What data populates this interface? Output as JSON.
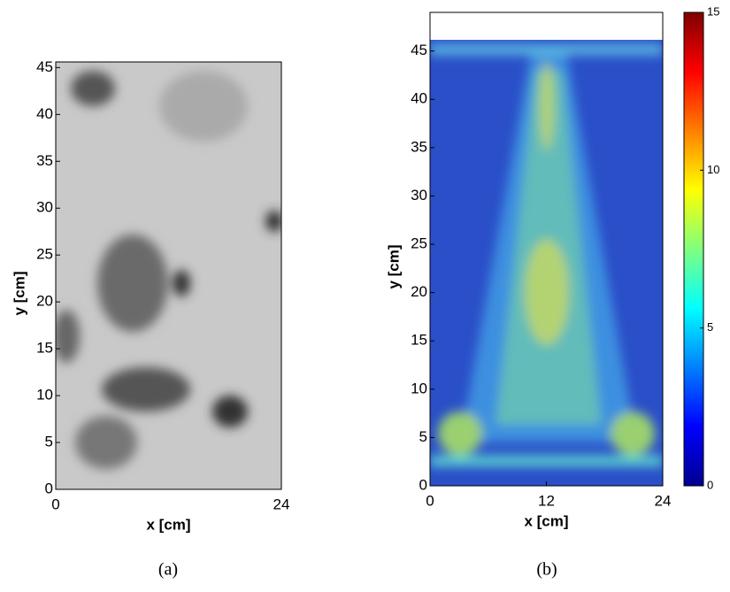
{
  "chart_data": [
    {
      "type": "quiver",
      "caption": "(a)",
      "xlabel": "x [cm]",
      "ylabel": "y [cm]",
      "xlim": [
        0,
        24
      ],
      "xticks": [
        0,
        24
      ],
      "ylim": [
        0,
        45.6
      ],
      "yticks": [
        0,
        5,
        10,
        15,
        20,
        25,
        30,
        35,
        40,
        45
      ]
    },
    {
      "type": "quiver",
      "caption": "(b)",
      "xlabel": "x [cm]",
      "ylabel": "y [cm]",
      "xlim": [
        0,
        24
      ],
      "xticks": [
        0,
        12,
        24
      ],
      "ylim": [
        0,
        49
      ],
      "yticks": [
        0,
        5,
        10,
        15,
        20,
        25,
        30,
        35,
        40,
        45
      ],
      "colormap": "jet",
      "clim": [
        0,
        15
      ],
      "cticks": [
        0,
        5,
        10,
        15
      ]
    }
  ]
}
